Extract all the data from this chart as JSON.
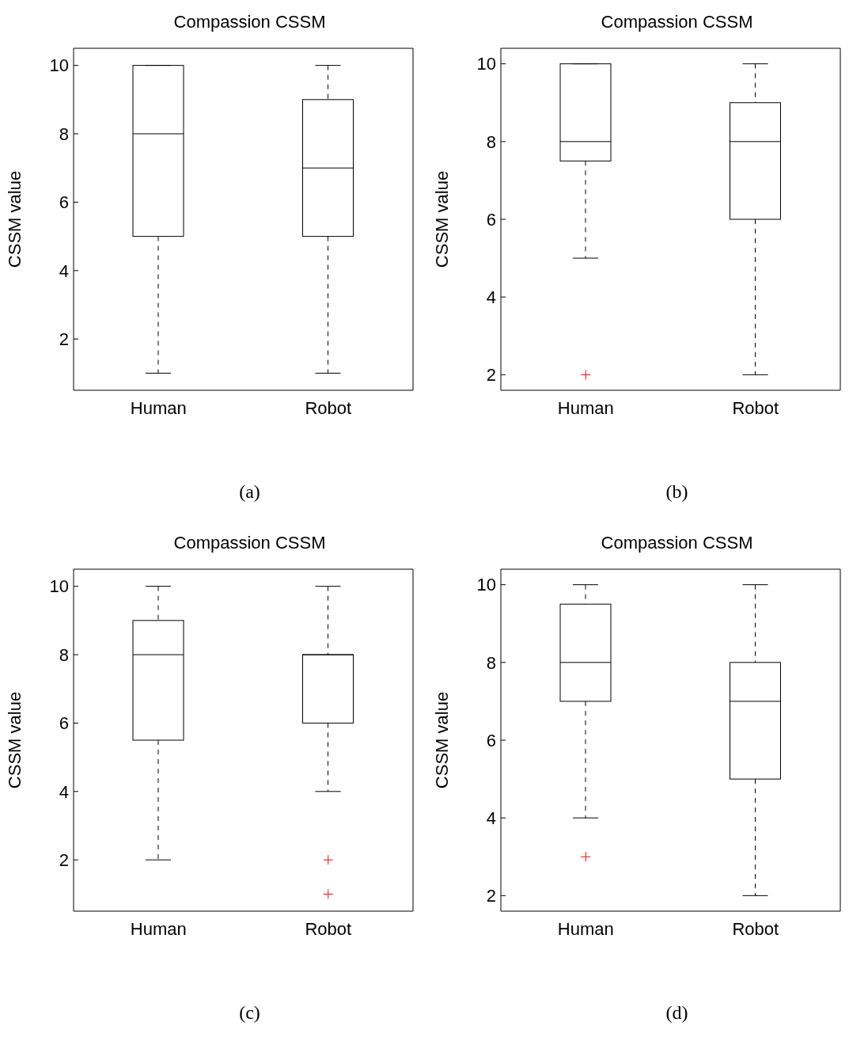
{
  "chart_data": [
    {
      "type": "box",
      "title": "Compassion CSSM",
      "ylabel": "CSSM value",
      "categories": [
        "Human",
        "Robot"
      ],
      "ylim": [
        0.5,
        10.5
      ],
      "yticks": [
        2,
        4,
        6,
        8,
        10
      ],
      "annotations": [
        "(a)"
      ],
      "boxes": [
        {
          "low": 1,
          "q1": 5,
          "median": 8,
          "q3": 10,
          "high": 10
        },
        {
          "low": 1,
          "q1": 5,
          "median": 7,
          "q3": 9,
          "high": 10
        }
      ]
    },
    {
      "type": "box",
      "title": "Compassion CSSM",
      "ylabel": "CSSM value",
      "categories": [
        "Human",
        "Robot"
      ],
      "ylim": [
        1.6,
        10.4
      ],
      "yticks": [
        2,
        4,
        6,
        8,
        10
      ],
      "annotations": [
        "(b)"
      ],
      "boxes": [
        {
          "low": 5,
          "q1": 7.5,
          "median": 8,
          "q3": 10,
          "high": 10,
          "outliers": [
            2
          ]
        },
        {
          "low": 2,
          "q1": 6,
          "median": 8,
          "q3": 9,
          "high": 10
        }
      ]
    },
    {
      "type": "box",
      "title": "Compassion CSSM",
      "ylabel": "CSSM value",
      "categories": [
        "Human",
        "Robot"
      ],
      "ylim": [
        0.5,
        10.5
      ],
      "yticks": [
        2,
        4,
        6,
        8,
        10
      ],
      "annotations": [
        "(c)"
      ],
      "boxes": [
        {
          "low": 2,
          "q1": 5.5,
          "median": 8,
          "q3": 9,
          "high": 10
        },
        {
          "low": 4,
          "q1": 6,
          "median": 8,
          "q3": 8,
          "high": 10,
          "outliers": [
            2,
            1
          ]
        }
      ]
    },
    {
      "type": "box",
      "title": "Compassion CSSM",
      "ylabel": "CSSM value",
      "categories": [
        "Human",
        "Robot"
      ],
      "ylim": [
        1.6,
        10.4
      ],
      "yticks": [
        2,
        4,
        6,
        8,
        10
      ],
      "annotations": [
        "(d)"
      ],
      "boxes": [
        {
          "low": 4,
          "q1": 7,
          "median": 8,
          "q3": 9.5,
          "high": 10,
          "outliers": [
            3
          ]
        },
        {
          "low": 2,
          "q1": 5,
          "median": 7,
          "q3": 8,
          "high": 10
        }
      ]
    }
  ]
}
